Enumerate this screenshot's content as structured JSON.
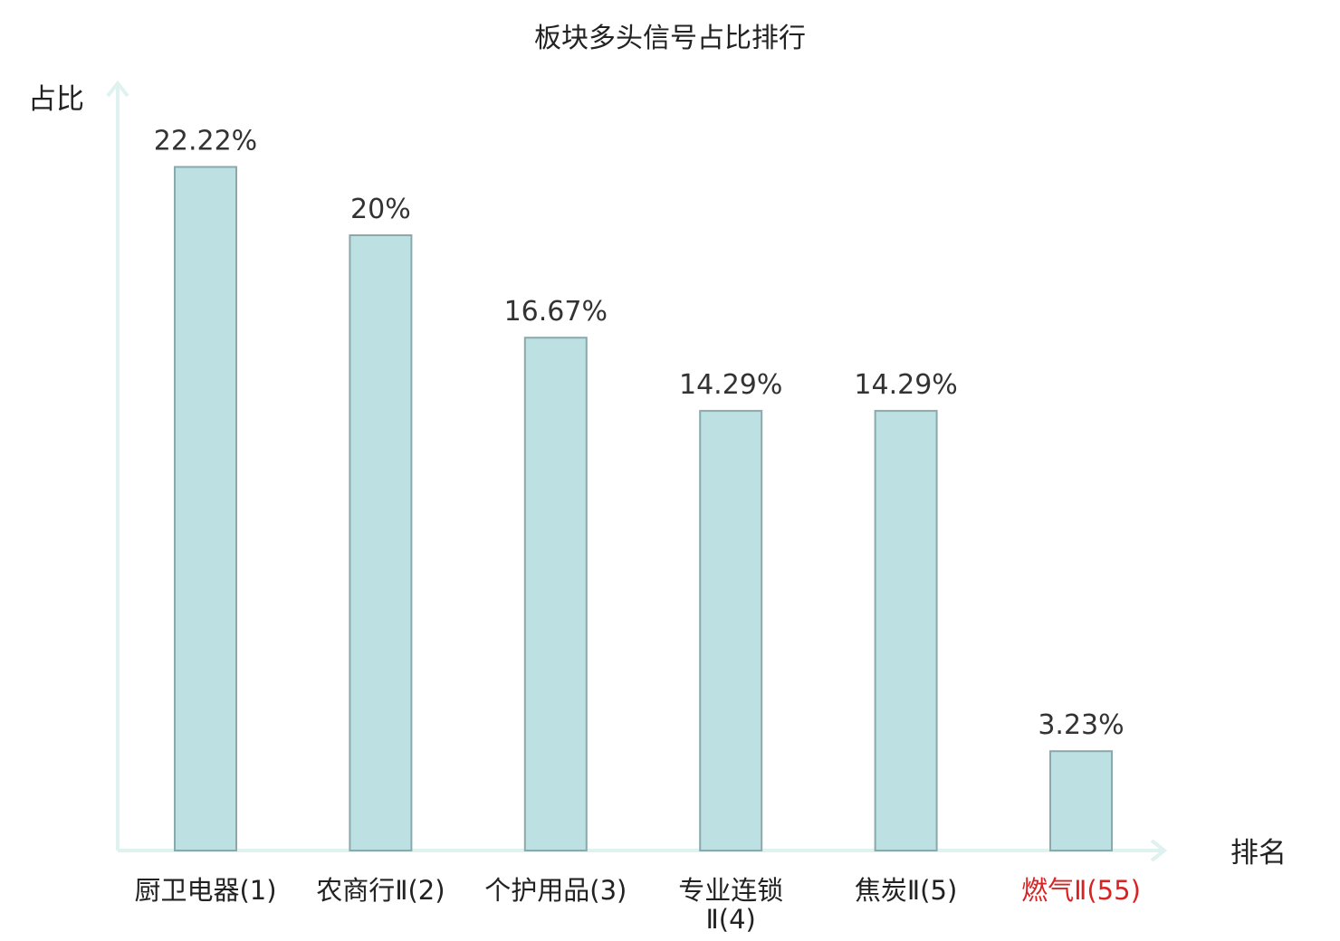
{
  "chart_data": {
    "type": "bar",
    "title": "板块多头信号占比排行",
    "ylabel": "占比",
    "xlabel": "排名",
    "categories": [
      "厨卫电器(1)",
      "农商行Ⅱ(2)",
      "个护用品(3)",
      "专业连锁Ⅱ(4)",
      "焦炭Ⅱ(5)",
      "燃气Ⅱ(55)"
    ],
    "category_lines": [
      [
        "厨卫电器(1)"
      ],
      [
        "农商行Ⅱ(2)"
      ],
      [
        "个护用品(3)"
      ],
      [
        "专业连锁",
        "Ⅱ(4)"
      ],
      [
        "焦炭Ⅱ(5)"
      ],
      [
        "燃气Ⅱ(55)"
      ]
    ],
    "values": [
      22.22,
      20,
      16.67,
      14.29,
      14.29,
      3.23
    ],
    "value_labels": [
      "22.22%",
      "20%",
      "16.67%",
      "14.29%",
      "14.29%",
      "3.23%"
    ],
    "highlight_index": 5,
    "ylim": [
      0,
      25
    ],
    "grid": false,
    "legend": "none"
  },
  "colors": {
    "bar_fill": "#bde0e3",
    "bar_stroke": "#8aa9ac",
    "axis": "#dff2ef",
    "text": "#222222",
    "value_text": "#333333",
    "highlight": "#d92323"
  }
}
